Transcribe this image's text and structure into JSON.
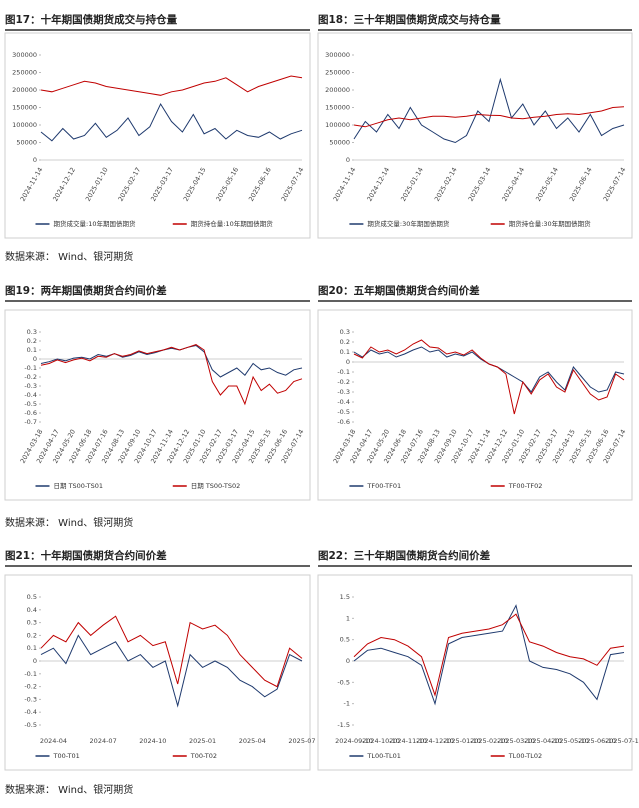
{
  "chart_data": [
    {
      "type": "line",
      "title": "图17：十年期国债期货成交与持仓量",
      "categories": [
        "2024-11-14",
        null,
        null,
        "2024-12-12",
        null,
        null,
        "2025-01-10",
        null,
        null,
        "2025-02-17",
        null,
        null,
        "2025-03-17",
        null,
        null,
        "2025-04-15",
        null,
        null,
        "2025-05-16",
        null,
        null,
        "2025-06-16",
        null,
        null,
        "2025-07-14"
      ],
      "series": [
        {
          "name": "期货成交量:10年期国债期货",
          "color": "#1f3a6e",
          "values": [
            80000,
            55000,
            90000,
            60000,
            70000,
            105000,
            65000,
            85000,
            120000,
            70000,
            95000,
            160000,
            110000,
            80000,
            130000,
            75000,
            90000,
            60000,
            85000,
            70000,
            65000,
            80000,
            60000,
            75000,
            85000
          ]
        },
        {
          "name": "期货持仓量:10年期国债期货",
          "color": "#c00000",
          "values": [
            200000,
            195000,
            205000,
            215000,
            225000,
            220000,
            210000,
            205000,
            200000,
            195000,
            190000,
            185000,
            195000,
            200000,
            210000,
            220000,
            225000,
            235000,
            215000,
            195000,
            210000,
            220000,
            230000,
            240000,
            235000
          ]
        }
      ],
      "ylim": [
        0,
        300000
      ],
      "yticks": [
        0,
        50000,
        100000,
        150000,
        200000,
        250000,
        300000
      ]
    },
    {
      "type": "line",
      "title": "图18：三十年期国债期货成交与持仓量",
      "categories": [
        "2024-11-14",
        null,
        null,
        "2024-12-14",
        null,
        null,
        "2025-01-14",
        null,
        null,
        "2025-02-14",
        null,
        null,
        "2025-03-14",
        null,
        null,
        "2025-04-14",
        null,
        null,
        "2025-05-14",
        null,
        null,
        "2025-06-14",
        null,
        null,
        "2025-07-14"
      ],
      "series": [
        {
          "name": "期货成交量:30年期国债期货",
          "color": "#1f3a6e",
          "values": [
            60000,
            110000,
            80000,
            130000,
            90000,
            150000,
            100000,
            80000,
            60000,
            50000,
            70000,
            140000,
            110000,
            230000,
            120000,
            160000,
            100000,
            140000,
            90000,
            120000,
            80000,
            130000,
            70000,
            90000,
            100000
          ]
        },
        {
          "name": "期货持仓量:30年期国债期货",
          "color": "#c00000",
          "values": [
            100000,
            95000,
            105000,
            115000,
            120000,
            115000,
            120000,
            125000,
            125000,
            122000,
            125000,
            130000,
            128000,
            127000,
            120000,
            118000,
            122000,
            125000,
            130000,
            132000,
            130000,
            135000,
            140000,
            150000,
            152000
          ]
        }
      ],
      "ylim": [
        0,
        300000
      ],
      "yticks": [
        0,
        50000,
        100000,
        150000,
        200000,
        250000,
        300000
      ]
    },
    {
      "type": "line",
      "title": "图19：两年期国债期货合约间价差",
      "categories": [
        "2024-03-18",
        null,
        "2024-04-17",
        null,
        "2024-05-20",
        null,
        "2024-06-18",
        null,
        "2024-07-16",
        null,
        "2024-08-13",
        null,
        "2024-09-10",
        null,
        "2024-10-17",
        null,
        "2024-11-14",
        null,
        "2024-12-12",
        null,
        "2025-01-10",
        null,
        "2025-02-17",
        null,
        "2025-03-17",
        null,
        "2025-04-15",
        null,
        "2025-05-15",
        null,
        "2025-06-16",
        null,
        "2025-07-14"
      ],
      "series": [
        {
          "name": "日期 TS00-TS01",
          "color": "#1f3a6e",
          "values": [
            -0.05,
            -0.03,
            0.0,
            -0.02,
            0.01,
            0.02,
            0.0,
            0.05,
            0.03,
            0.06,
            0.02,
            0.04,
            0.08,
            0.05,
            0.07,
            0.1,
            0.12,
            0.1,
            0.13,
            0.15,
            0.08,
            -0.12,
            -0.2,
            -0.15,
            -0.1,
            -0.18,
            -0.05,
            -0.12,
            -0.1,
            -0.15,
            -0.18,
            -0.12,
            -0.1
          ]
        },
        {
          "name": "日期 TS00-TS02",
          "color": "#c00000",
          "values": [
            -0.07,
            -0.05,
            -0.01,
            -0.04,
            -0.01,
            0.01,
            -0.02,
            0.03,
            0.02,
            0.06,
            0.03,
            0.05,
            0.09,
            0.06,
            0.08,
            0.1,
            0.13,
            0.1,
            0.13,
            0.16,
            0.1,
            -0.25,
            -0.4,
            -0.3,
            -0.3,
            -0.5,
            -0.2,
            -0.35,
            -0.28,
            -0.38,
            -0.35,
            -0.25,
            -0.22
          ]
        }
      ],
      "ylim": [
        -0.7,
        0.3
      ],
      "yticks": [
        0.3,
        0.2,
        0.1,
        0,
        -0.1,
        -0.2,
        -0.3,
        -0.4,
        -0.5,
        -0.6,
        -0.7
      ]
    },
    {
      "type": "line",
      "title": "图20：五年期国债期货合约间价差",
      "categories": [
        "2024-03-18",
        null,
        "2024-04-17",
        null,
        "2024-05-20",
        null,
        "2024-06-18",
        null,
        "2024-07-16",
        null,
        "2024-08-13",
        null,
        "2024-09-10",
        null,
        "2024-10-17",
        null,
        "2024-11-14",
        null,
        "2024-12-12",
        null,
        "2025-01-10",
        null,
        "2025-02-17",
        null,
        "2025-03-17",
        null,
        "2025-04-15",
        null,
        "2025-05-15",
        null,
        "2025-06-16",
        null,
        "2025-07-14"
      ],
      "series": [
        {
          "name": "TF00-TF01",
          "color": "#1f3a6e",
          "values": [
            0.1,
            0.05,
            0.12,
            0.08,
            0.1,
            0.05,
            0.08,
            0.12,
            0.15,
            0.1,
            0.12,
            0.05,
            0.08,
            0.06,
            0.1,
            0.03,
            -0.02,
            -0.05,
            -0.1,
            -0.15,
            -0.2,
            -0.3,
            -0.15,
            -0.1,
            -0.2,
            -0.28,
            -0.05,
            -0.15,
            -0.25,
            -0.3,
            -0.28,
            -0.1,
            -0.12
          ]
        },
        {
          "name": "TF00-TF02",
          "color": "#c00000",
          "values": [
            0.08,
            0.04,
            0.15,
            0.1,
            0.12,
            0.08,
            0.12,
            0.18,
            0.22,
            0.15,
            0.14,
            0.08,
            0.1,
            0.07,
            0.12,
            0.04,
            -0.02,
            -0.05,
            -0.12,
            -0.52,
            -0.2,
            -0.32,
            -0.18,
            -0.12,
            -0.25,
            -0.3,
            -0.08,
            -0.2,
            -0.32,
            -0.38,
            -0.35,
            -0.12,
            -0.18
          ]
        }
      ],
      "ylim": [
        -0.6,
        0.3
      ],
      "yticks": [
        0.3,
        0.2,
        0.1,
        0,
        -0.1,
        -0.2,
        -0.3,
        -0.4,
        -0.5,
        -0.6
      ]
    },
    {
      "type": "line",
      "title": "图21：十年期国债期货合约间价差",
      "categories": [
        null,
        "2024-04",
        null,
        null,
        null,
        "2024-07",
        null,
        null,
        null,
        "2024-10",
        null,
        null,
        null,
        "2025-01",
        null,
        null,
        null,
        "2025-04",
        null,
        null,
        null,
        "2025-07"
      ],
      "series": [
        {
          "name": "T00-T01",
          "color": "#1f3a6e",
          "values": [
            0.05,
            0.1,
            -0.02,
            0.2,
            0.05,
            0.1,
            0.15,
            0.0,
            0.05,
            -0.05,
            0.0,
            -0.35,
            0.05,
            -0.05,
            0.0,
            -0.05,
            -0.15,
            -0.2,
            -0.28,
            -0.22,
            0.05,
            0.0
          ]
        },
        {
          "name": "T00-T02",
          "color": "#c00000",
          "values": [
            0.1,
            0.2,
            0.15,
            0.3,
            0.2,
            0.28,
            0.35,
            0.15,
            0.2,
            0.12,
            0.15,
            -0.18,
            0.3,
            0.25,
            0.28,
            0.2,
            0.05,
            -0.05,
            -0.15,
            -0.2,
            0.1,
            0.02
          ]
        }
      ],
      "ylim": [
        -0.5,
        0.5
      ],
      "yticks": [
        0.5,
        0.4,
        0.3,
        0.2,
        0.1,
        0,
        -0.1,
        -0.2,
        -0.3,
        -0.4,
        -0.5
      ]
    },
    {
      "type": "line",
      "title": "图22：三十年期国债期货合约间价差",
      "categories": [
        "2024-09-10",
        null,
        "2024-10-10",
        null,
        "2024-11-10",
        null,
        "2024-12-10",
        null,
        "2025-01-10",
        null,
        "2025-02-10",
        null,
        "2025-03-10",
        null,
        "2025-04-10",
        null,
        "2025-05-10",
        null,
        "2025-06-10",
        null,
        "2025-07-10"
      ],
      "series": [
        {
          "name": "TL00-TL01",
          "color": "#1f3a6e",
          "values": [
            0.0,
            0.25,
            0.3,
            0.2,
            0.1,
            -0.1,
            -1.0,
            0.4,
            0.55,
            0.6,
            0.65,
            0.7,
            1.3,
            0.0,
            -0.15,
            -0.2,
            -0.3,
            -0.5,
            -0.9,
            0.15,
            0.2
          ]
        },
        {
          "name": "TL00-TL02",
          "color": "#c00000",
          "values": [
            0.1,
            0.4,
            0.55,
            0.5,
            0.35,
            0.1,
            -0.8,
            0.55,
            0.65,
            0.7,
            0.75,
            0.85,
            1.1,
            0.45,
            0.35,
            0.2,
            0.1,
            0.05,
            -0.1,
            0.3,
            0.35
          ]
        }
      ],
      "ylim": [
        -1.5,
        1.5
      ],
      "yticks": [
        1.5,
        1,
        0.5,
        0,
        -0.5,
        -1,
        -1.5
      ]
    }
  ],
  "sources": [
    "数据来源： Wind、银河期货",
    "数据来源： Wind、银河期货",
    "数据来源： Wind、银河期货"
  ]
}
